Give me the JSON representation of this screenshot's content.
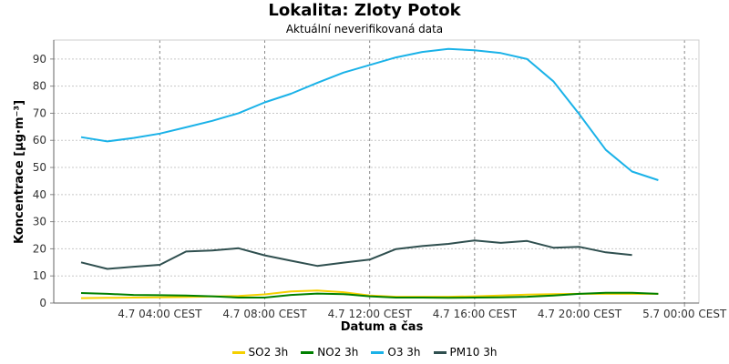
{
  "header": {
    "title": "Lokalita: Zloty Potok",
    "subtitle": "Aktuální neverifikovaná data"
  },
  "chart_data": {
    "type": "line",
    "title": "Lokalita: Zloty Potok",
    "subtitle": "Aktuální neverifikovaná data",
    "xlabel": "Datum a čas",
    "ylabel": "Koncentrace [µg·m⁻³]",
    "ylim": [
      0,
      97
    ],
    "yticks": [
      0,
      10,
      20,
      30,
      40,
      50,
      60,
      70,
      80,
      90
    ],
    "x": [
      "4.7 01:00 CEST",
      "4.7 02:00 CEST",
      "4.7 03:00 CEST",
      "4.7 04:00 CEST",
      "4.7 05:00 CEST",
      "4.7 06:00 CEST",
      "4.7 07:00 CEST",
      "4.7 08:00 CEST",
      "4.7 09:00 CEST",
      "4.7 10:00 CEST",
      "4.7 11:00 CEST",
      "4.7 12:00 CEST",
      "4.7 13:00 CEST",
      "4.7 14:00 CEST",
      "4.7 15:00 CEST",
      "4.7 16:00 CEST",
      "4.7 17:00 CEST",
      "4.7 18:00 CEST",
      "4.7 19:00 CEST",
      "4.7 20:00 CEST",
      "4.7 21:00 CEST",
      "4.7 22:00 CEST",
      "4.7 23:00 CEST"
    ],
    "xticks": [
      {
        "label": "4.7 04:00 CEST",
        "index": 3
      },
      {
        "label": "4.7 08:00 CEST",
        "index": 7
      },
      {
        "label": "4.7 12:00 CEST",
        "index": 11
      },
      {
        "label": "4.7 16:00 CEST",
        "index": 15
      },
      {
        "label": "4.7 20:00 CEST",
        "index": 19
      },
      {
        "label": "5.7 00:00 CEST",
        "index": 23
      }
    ],
    "grid": true,
    "legend_position": "bottom",
    "series": [
      {
        "name": "SO2 3h",
        "color": "#f5d000",
        "values": [
          1.8,
          1.9,
          2.0,
          2.1,
          2.2,
          2.4,
          2.6,
          3.2,
          4.3,
          4.6,
          4.0,
          2.8,
          2.3,
          2.3,
          2.3,
          2.5,
          2.8,
          3.1,
          3.3,
          3.4,
          3.4,
          3.4,
          3.4
        ]
      },
      {
        "name": "NO2 3h",
        "color": "#008000",
        "values": [
          3.7,
          3.4,
          3.0,
          2.9,
          2.8,
          2.5,
          2.0,
          2.0,
          3.0,
          3.5,
          3.3,
          2.5,
          2.0,
          2.0,
          1.9,
          2.0,
          2.1,
          2.3,
          2.8,
          3.4,
          3.8,
          3.8,
          3.4
        ]
      },
      {
        "name": "O3 3h",
        "color": "#1ab2e8",
        "values": [
          61.2,
          59.6,
          60.9,
          62.5,
          64.8,
          67.2,
          70.0,
          74.0,
          77.2,
          81.2,
          85.0,
          87.8,
          90.6,
          92.6,
          93.7,
          93.2,
          92.2,
          90.0,
          81.8,
          69.5,
          56.5,
          48.5,
          45.3
        ]
      },
      {
        "name": "PM10 3h",
        "color": "#2f4f4f",
        "values": [
          15.0,
          12.6,
          13.4,
          14.1,
          19.0,
          19.4,
          20.2,
          17.6,
          15.6,
          13.7,
          14.9,
          16.0,
          19.9,
          21.0,
          21.8,
          23.1,
          22.2,
          22.9,
          20.4,
          20.7,
          18.7,
          17.7,
          null
        ]
      }
    ]
  }
}
